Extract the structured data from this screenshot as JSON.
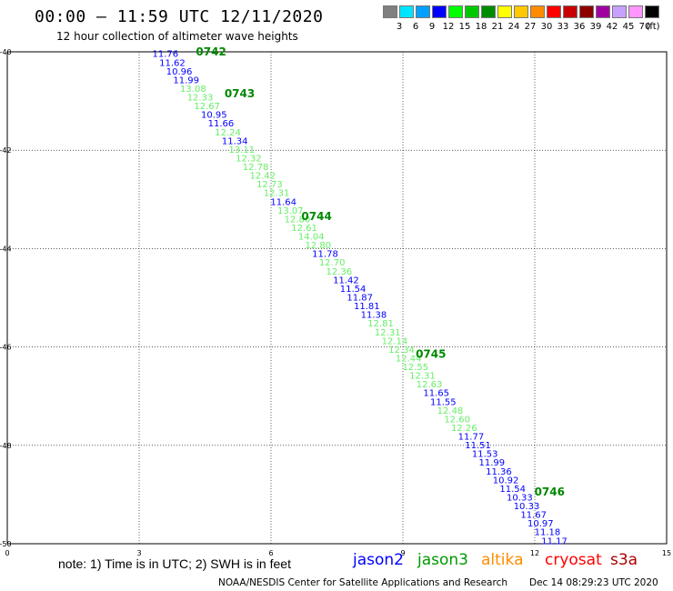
{
  "title": "00:00 – 11:59 UTC 12/11/2020",
  "subtitle": "12 hour collection of altimeter wave heights",
  "legend": {
    "unit": "(ft)",
    "colors": [
      "#808080",
      "#00e5ff",
      "#00a0ff",
      "#0000ff",
      "#00ff00",
      "#00c800",
      "#008c00",
      "#ffff00",
      "#ffc800",
      "#ff8c00",
      "#ff0000",
      "#c80000",
      "#8c0000",
      "#a000a0",
      "#c8a0ff",
      "#ff96ff",
      "#000000"
    ],
    "labels": [
      "3",
      "6",
      "9",
      "12",
      "15",
      "18",
      "21",
      "24",
      "27",
      "30",
      "33",
      "36",
      "39",
      "42",
      "45",
      "70"
    ]
  },
  "axes": {
    "x_ticks": [
      "0",
      "3",
      "6",
      "9",
      "12",
      "15"
    ],
    "y_ticks": [
      "-40",
      "-42",
      "-44",
      "-46",
      "-48",
      "-50"
    ]
  },
  "times": [
    {
      "label": "0742",
      "lon": 4.25,
      "lat": -40.0
    },
    {
      "label": "0743",
      "lon": 4.9,
      "lat": -40.85
    },
    {
      "label": "0744",
      "lon": 6.65,
      "lat": -43.35
    },
    {
      "label": "0745",
      "lon": 9.25,
      "lat": -46.15
    },
    {
      "label": "0746",
      "lon": 11.95,
      "lat": -48.95
    }
  ],
  "readings": [
    {
      "v": "11.76",
      "c": "#0000ff"
    },
    {
      "v": "11.62",
      "c": "#0000ff"
    },
    {
      "v": "10.96",
      "c": "#0000ff"
    },
    {
      "v": "11.99",
      "c": "#0000ff"
    },
    {
      "v": "13.08",
      "c": "#66ee66"
    },
    {
      "v": "12.33",
      "c": "#66ee66"
    },
    {
      "v": "12.67",
      "c": "#66ee66"
    },
    {
      "v": "10.95",
      "c": "#0000ff"
    },
    {
      "v": "11.66",
      "c": "#0000ff"
    },
    {
      "v": "12.24",
      "c": "#66ee66"
    },
    {
      "v": "11.34",
      "c": "#0000ff"
    },
    {
      "v": "13.11",
      "c": "#66ee66"
    },
    {
      "v": "12.32",
      "c": "#66ee66"
    },
    {
      "v": "12.78",
      "c": "#66ee66"
    },
    {
      "v": "12.42",
      "c": "#66ee66"
    },
    {
      "v": "12.73",
      "c": "#66ee66"
    },
    {
      "v": "12.31",
      "c": "#66ee66"
    },
    {
      "v": "11.64",
      "c": "#0000ff"
    },
    {
      "v": "13.07",
      "c": "#66ee66"
    },
    {
      "v": "12.80",
      "c": "#66ee66"
    },
    {
      "v": "12.61",
      "c": "#66ee66"
    },
    {
      "v": "14.04",
      "c": "#66ee66"
    },
    {
      "v": "12.80",
      "c": "#66ee66"
    },
    {
      "v": "11.78",
      "c": "#0000ff"
    },
    {
      "v": "12.70",
      "c": "#66ee66"
    },
    {
      "v": "12.36",
      "c": "#66ee66"
    },
    {
      "v": "11.42",
      "c": "#0000ff"
    },
    {
      "v": "11.54",
      "c": "#0000ff"
    },
    {
      "v": "11.87",
      "c": "#0000ff"
    },
    {
      "v": "11.81",
      "c": "#0000ff"
    },
    {
      "v": "11.38",
      "c": "#0000ff"
    },
    {
      "v": "12.81",
      "c": "#66ee66"
    },
    {
      "v": "12.31",
      "c": "#66ee66"
    },
    {
      "v": "12.14",
      "c": "#66ee66"
    },
    {
      "v": "12.34",
      "c": "#66ee66"
    },
    {
      "v": "12.44",
      "c": "#66ee66"
    },
    {
      "v": "12.55",
      "c": "#66ee66"
    },
    {
      "v": "12.31",
      "c": "#66ee66"
    },
    {
      "v": "12.63",
      "c": "#66ee66"
    },
    {
      "v": "11.65",
      "c": "#0000ff"
    },
    {
      "v": "11.55",
      "c": "#0000ff"
    },
    {
      "v": "12.48",
      "c": "#66ee66"
    },
    {
      "v": "12.60",
      "c": "#66ee66"
    },
    {
      "v": "12.26",
      "c": "#66ee66"
    },
    {
      "v": "11.77",
      "c": "#0000ff"
    },
    {
      "v": "11.51",
      "c": "#0000ff"
    },
    {
      "v": "11.53",
      "c": "#0000ff"
    },
    {
      "v": "11.99",
      "c": "#0000ff"
    },
    {
      "v": "11.36",
      "c": "#0000ff"
    },
    {
      "v": "10.92",
      "c": "#0000ff"
    },
    {
      "v": "11.54",
      "c": "#0000ff"
    },
    {
      "v": "10.33",
      "c": "#0000ff"
    },
    {
      "v": "10.33",
      "c": "#0000ff"
    },
    {
      "v": "11.67",
      "c": "#0000ff"
    },
    {
      "v": "10.97",
      "c": "#0000ff"
    },
    {
      "v": "11.18",
      "c": "#0000ff"
    },
    {
      "v": "11.17",
      "c": "#0000ff"
    }
  ],
  "note": "note: 1) Time is in UTC; 2) SWH is in feet",
  "satellites": [
    {
      "name": "jason2",
      "color": "#0000ff"
    },
    {
      "name": "jason3",
      "color": "#009900"
    },
    {
      "name": "altika",
      "color": "#ff8c00"
    },
    {
      "name": "cryosat",
      "color": "#ff0000"
    },
    {
      "name": "s3a",
      "color": "#aa0000"
    }
  ],
  "footer": {
    "org": "NOAA/NESDIS Center for Satellite Applications and Research",
    "timestamp": "Dec 14 08:29:23 UTC 2020"
  }
}
